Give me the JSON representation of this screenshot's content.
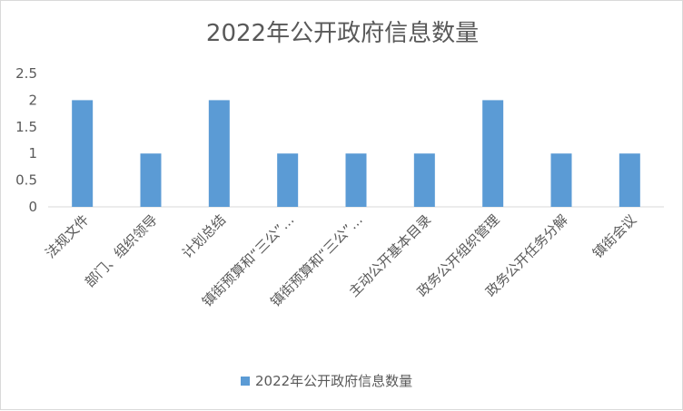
{
  "chart_data": {
    "type": "bar",
    "title": "2022年公开政府信息数量",
    "categories": [
      "法规文件",
      "部门、组织领导",
      "计划总结",
      "镇街预算和“三公”…",
      "镇街预算和“三公”…",
      "主动公开基本目录",
      "政务公开组织管理",
      "政务公开任务分解",
      "镇街会议"
    ],
    "series": [
      {
        "name": "2022年公开政府信息数量",
        "values": [
          2,
          1,
          2,
          1,
          1,
          1,
          2,
          1,
          1
        ]
      }
    ],
    "y_ticks": [
      "0",
      "0.5",
      "1",
      "1.5",
      "2",
      "2.5"
    ],
    "ylim": [
      0,
      2.5
    ],
    "grid": false,
    "legend": "bottom",
    "bar_color": "#5b9bd5",
    "axis_color": "#d9d9d9"
  }
}
